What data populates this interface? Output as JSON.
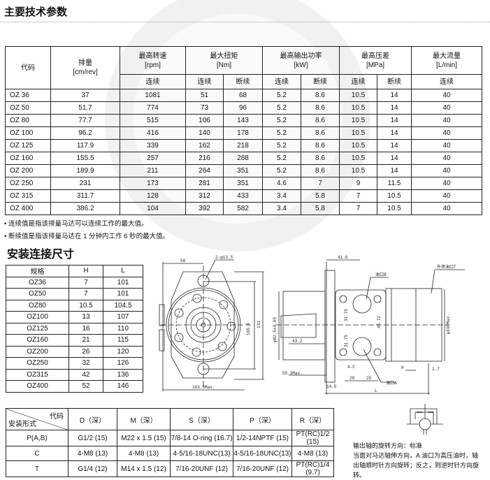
{
  "title": "主要技术参数",
  "spec_table": {
    "headers": {
      "code": "代码",
      "disp": "排量",
      "disp_unit": "[cm/rev]",
      "speed": "最高转速",
      "speed_unit": "[rpm]",
      "torque": "最大扭矩",
      "torque_unit": "[Nm]",
      "power": "最高输出功率",
      "power_unit": "[kW]",
      "pressure": "最高压差",
      "pressure_unit": "[MPa]",
      "flow": "最大流量",
      "flow_unit": "[L/min]",
      "cont": "连续",
      "inter": "断续"
    },
    "rows": [
      [
        "OZ 36",
        "37",
        "1081",
        "51",
        "68",
        "5.2",
        "8.6",
        "10.5",
        "14",
        "40"
      ],
      [
        "OZ 50",
        "51.7",
        "774",
        "73",
        "96",
        "5.2",
        "8.6",
        "10.5",
        "14",
        "40"
      ],
      [
        "OZ 80",
        "77.7",
        "515",
        "106",
        "143",
        "5.2",
        "8.6",
        "10.5",
        "14",
        "40"
      ],
      [
        "OZ 100",
        "96.2",
        "416",
        "140",
        "178",
        "5.2",
        "8.6",
        "10.5",
        "14",
        "40"
      ],
      [
        "OZ 125",
        "117.9",
        "339",
        "162",
        "218",
        "5.2",
        "8.6",
        "10.5",
        "14",
        "40"
      ],
      [
        "OZ 160",
        "155.5",
        "257",
        "216",
        "288",
        "5.2",
        "8.6",
        "10.5",
        "14",
        "40"
      ],
      [
        "OZ 200",
        "189.9",
        "211",
        "264",
        "351",
        "5.2",
        "8.6",
        "10.5",
        "14",
        "40"
      ],
      [
        "OZ 250",
        "231",
        "173",
        "281",
        "351",
        "4.6",
        "7",
        "9",
        "11.5",
        "40"
      ],
      [
        "OZ 315",
        "311.7",
        "128",
        "312",
        "433",
        "3.4",
        "5.8",
        "7",
        "10.5",
        "40"
      ],
      [
        "OZ 400",
        "386.2",
        "104",
        "392",
        "582",
        "3.4",
        "5.8",
        "7",
        "10.5",
        "40"
      ]
    ]
  },
  "notes": [
    "• 连续值是指该排量马达可以连续工作的最大值。",
    "• 断续值是指该排量马达在 1 分钟内工作 6 秒的最大值。"
  ],
  "install_title": "安装连接尺寸",
  "size_table": {
    "headers": [
      "规格",
      "H",
      "L"
    ],
    "rows": [
      [
        "OZ36",
        "7",
        "101"
      ],
      [
        "OZ50",
        "7",
        "101"
      ],
      [
        "OZ80",
        "10.5",
        "104.5"
      ],
      [
        "OZ100",
        "13",
        "107"
      ],
      [
        "OZ125",
        "16",
        "110"
      ],
      [
        "OZ160",
        "21",
        "115"
      ],
      [
        "OZ200",
        "26",
        "120"
      ],
      [
        "OZ250",
        "32",
        "126"
      ],
      [
        "OZ315",
        "42",
        "136"
      ],
      [
        "OZ400",
        "52",
        "146"
      ]
    ]
  },
  "drawing": {
    "d1": "50",
    "d2": "2-φ13.5",
    "d3": "106.4",
    "d4": "131",
    "d5": "103.5Max.",
    "d6": "φ82.5±0.05",
    "d7": "43.2",
    "d8": "55.3Max.",
    "d9": "41.6",
    "d10": "油口B",
    "d11": "外泄油口T",
    "d12": "31.75",
    "d13": "31.75",
    "d14": "45.72",
    "d15": "4-C",
    "d16": "14.5",
    "d17": "20",
    "d18": "20",
    "d19": "油口A",
    "d20": "H",
    "d21": "L",
    "d22": "1.7",
    "d23": "φ108Max."
  },
  "port_table": {
    "corner_top": "代码",
    "corner_bottom": "安装形式",
    "headers": [
      "D（深）",
      "M（深）",
      "S（深）",
      "P（深）",
      "R（深）"
    ],
    "rows": [
      [
        "P(A,B)",
        "G1/2  (15)",
        "M22 x 1.5  (15)",
        "7/8-14 O-ring (16.7)",
        "1/2-14NPTF (15)",
        "PT(RC)1/2  (15)"
      ],
      [
        "C",
        "4-M8  (13)",
        "4-M8       (13)",
        "4-5/16-18UNC(13)",
        "4-5/16-18UNC(13)",
        "4-M8        (13)"
      ],
      [
        "T",
        "G1/4  (12)",
        "M14 x 1.5 (12)",
        "7/16-20UNF  (12)",
        "7/16-20UNF  (12)",
        "PT(RC)1/4   (9.7)"
      ]
    ]
  },
  "rotation": [
    "输出轴的旋转方向：标准",
    "当面对马达轴伸方向，A 油口为高压油时，轴",
    "出轴顺时针方向旋转；反之，则逆时针方向旋转。"
  ]
}
